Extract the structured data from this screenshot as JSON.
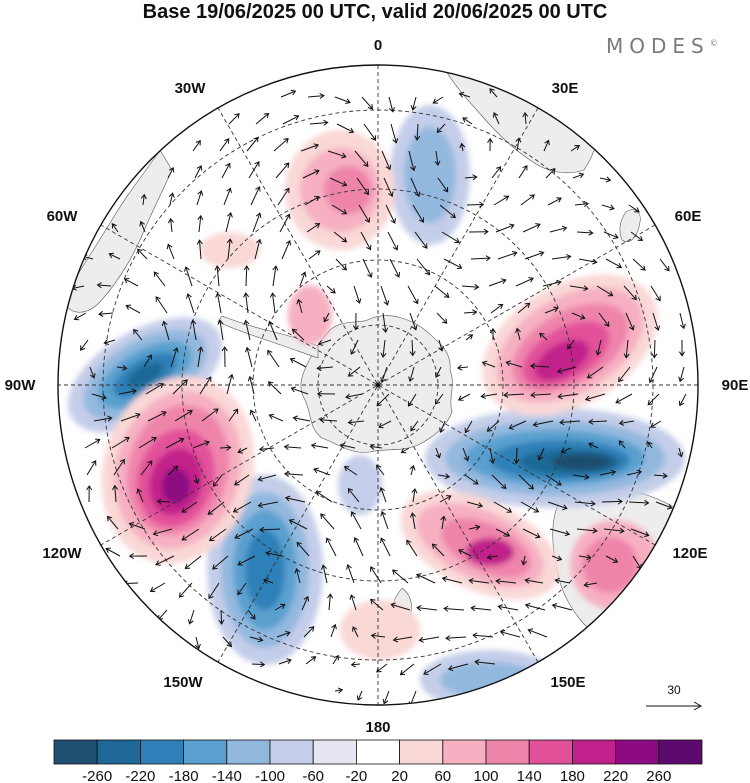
{
  "header": {
    "title": "Base 19/06/2025 00 UTC, valid 20/06/2025 00 UTC",
    "brand": "MODES",
    "brand_mark": "©"
  },
  "map": {
    "projection": "south-polar-stereographic",
    "longitude_labels": [
      "0",
      "30E",
      "60E",
      "90E",
      "120E",
      "150E",
      "180",
      "150W",
      "120W",
      "90W",
      "60W",
      "30W"
    ],
    "vector_reference": "30",
    "colors": {
      "land": "#e9e9e9",
      "grid": "#333333",
      "arrow": "#111111"
    }
  },
  "colorbar": {
    "ticks": [
      "-260",
      "-220",
      "-180",
      "-140",
      "-100",
      "-60",
      "-20",
      "20",
      "60",
      "100",
      "140",
      "180",
      "220",
      "260"
    ],
    "colors": [
      "#1f4e6e",
      "#1f6796",
      "#2f80b8",
      "#5aa0cf",
      "#93b8de",
      "#c4cde9",
      "#e6e6f3",
      "#ffffff",
      "#f9d8d6",
      "#f6b0c2",
      "#ef84ab",
      "#e2519a",
      "#c1218a",
      "#8d0a82",
      "#5c0a6e"
    ]
  }
}
